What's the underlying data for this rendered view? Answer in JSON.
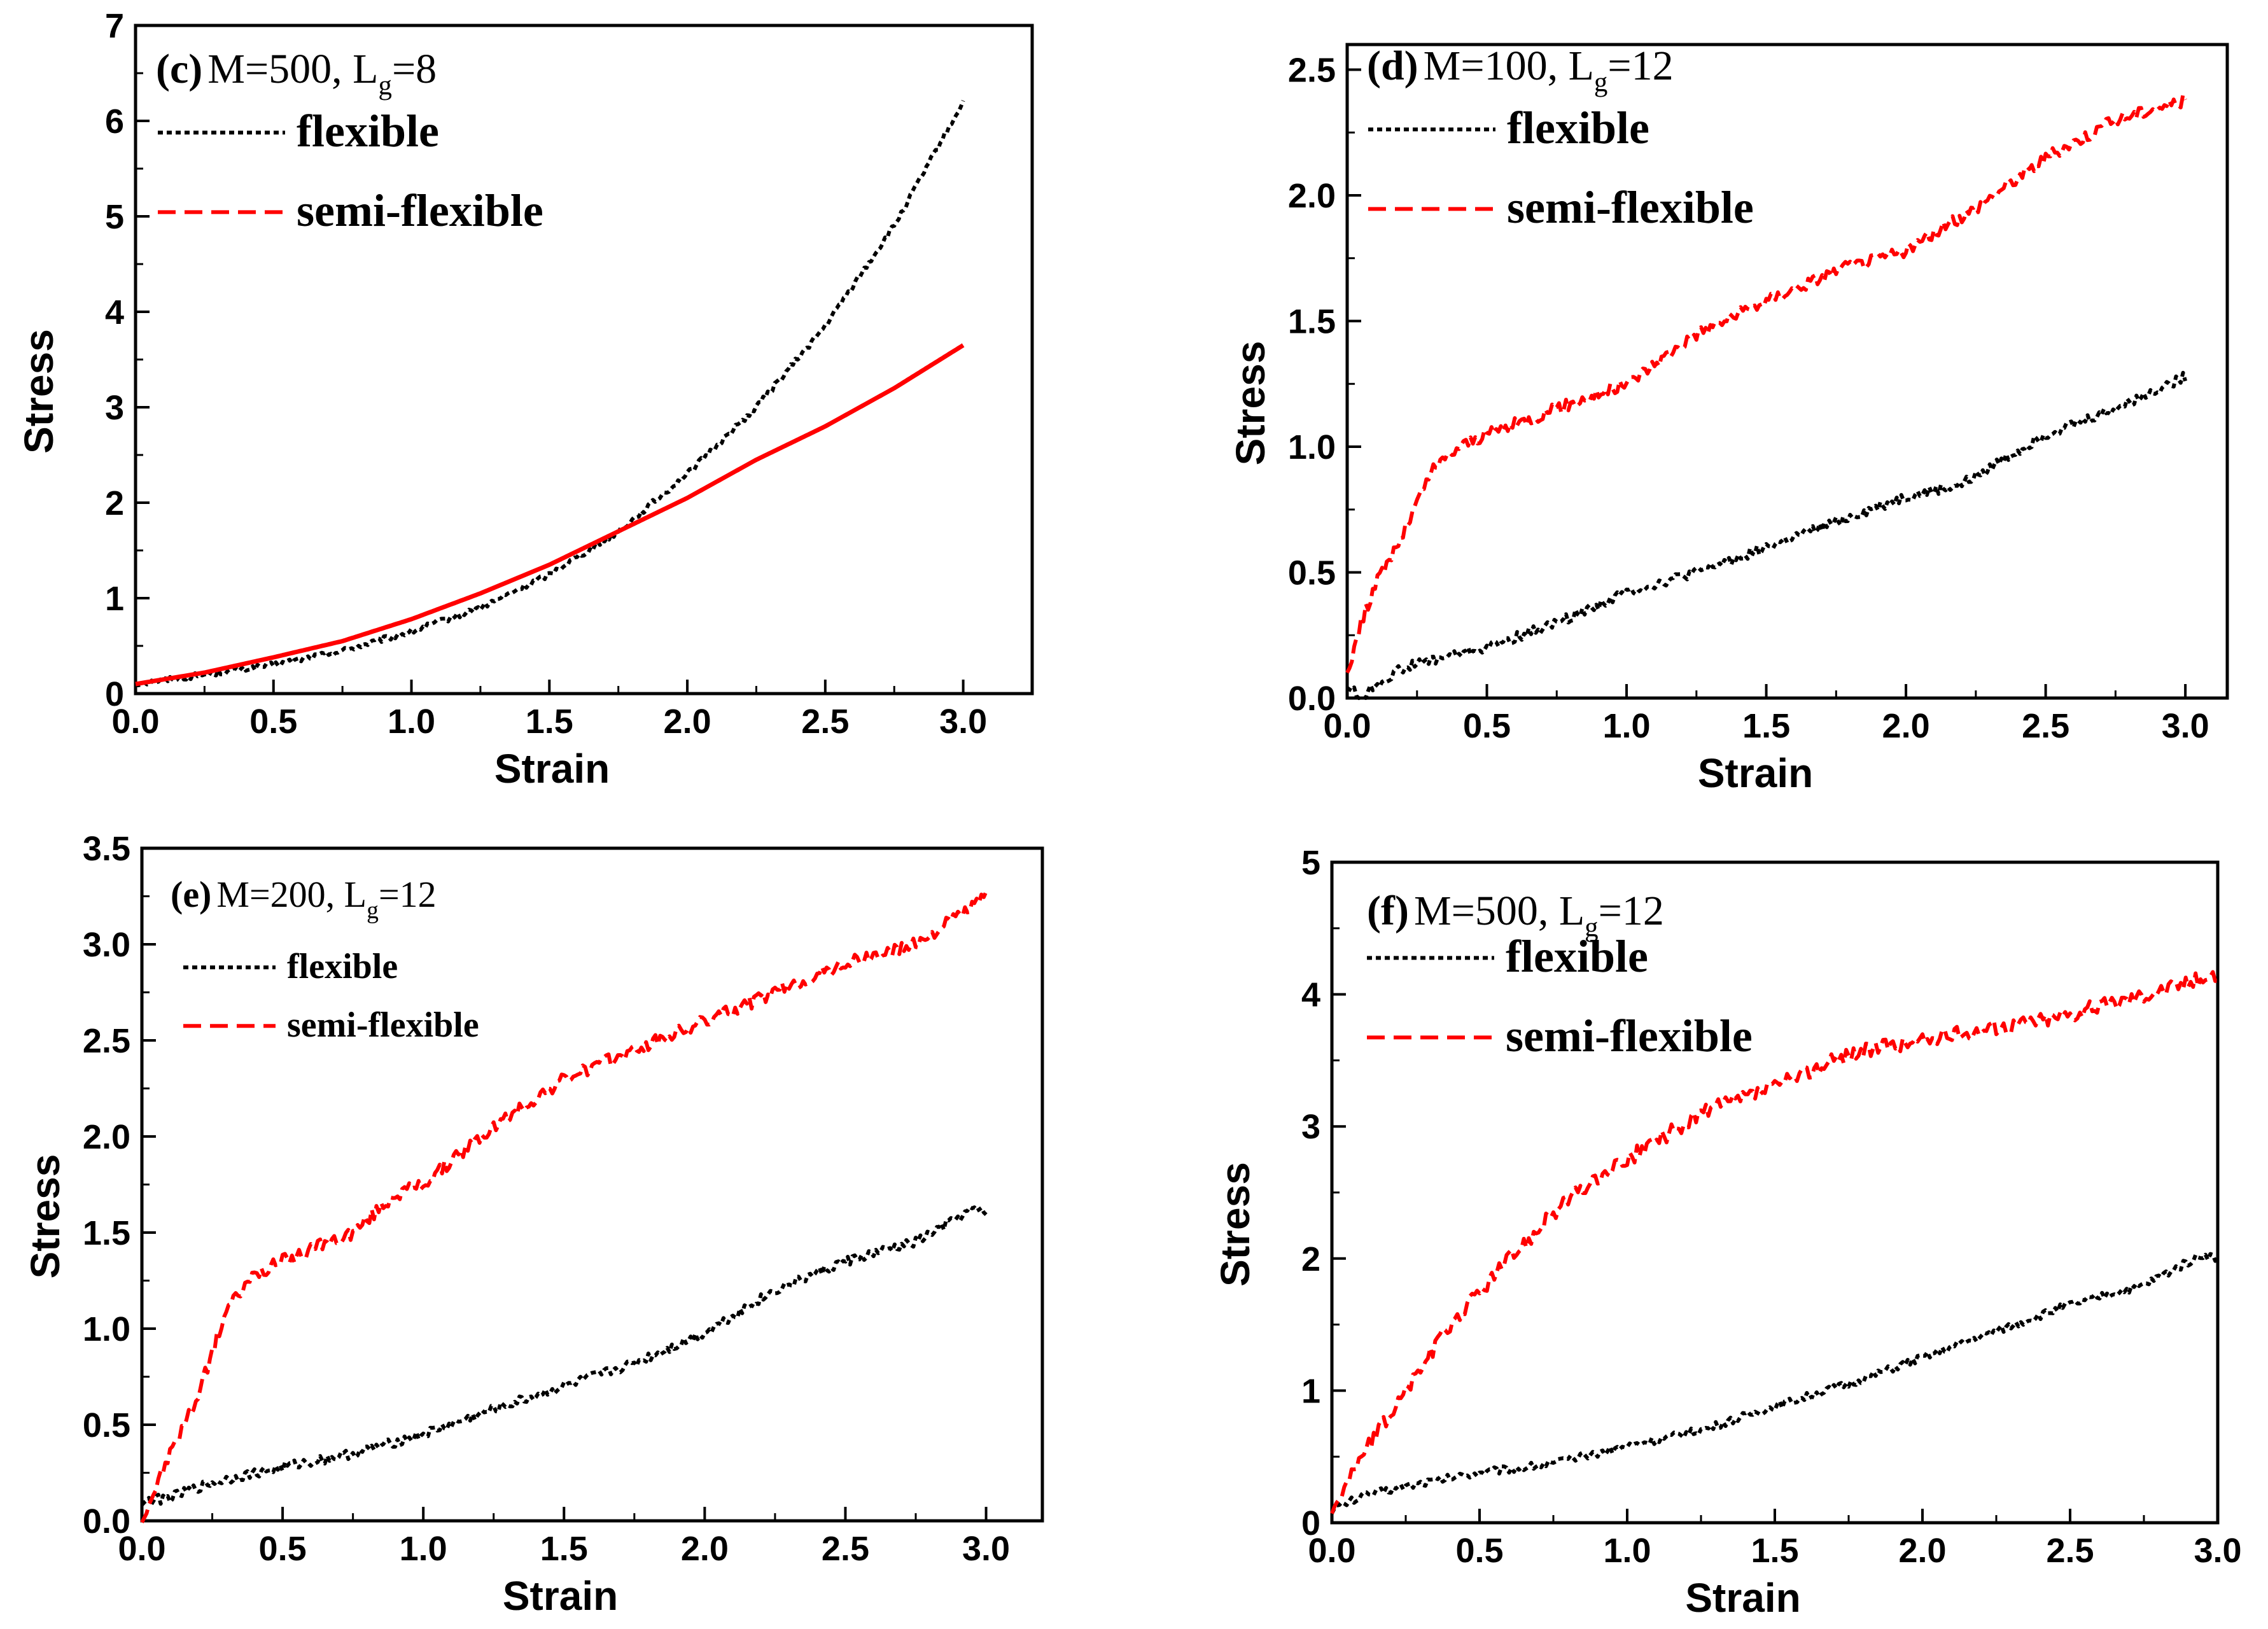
{
  "chart_data": [
    {
      "id": "c",
      "type": "line",
      "panel_label": "(c)",
      "title": "M=500, L",
      "title_sub": "g",
      "title_tail": "=8",
      "xlabel": "Strain",
      "ylabel": "Stress",
      "xlim": [
        0,
        3.25
      ],
      "ylim": [
        0,
        7
      ],
      "xticks": [
        "0.0",
        "0.5",
        "1.0",
        "1.5",
        "2.0",
        "2.5",
        "3.0"
      ],
      "xtick_values": [
        0,
        0.5,
        1,
        1.5,
        2,
        2.5,
        3
      ],
      "yticks": [
        "0",
        "1",
        "2",
        "3",
        "4",
        "5",
        "6",
        "7"
      ],
      "ytick_values": [
        0,
        1,
        2,
        3,
        4,
        5,
        6,
        7
      ],
      "legend_position": "top-left",
      "legend_size": "large",
      "series": [
        {
          "name": "flexible",
          "color": "#000000",
          "style": "dotted",
          "x": [
            0,
            0.25,
            0.5,
            0.75,
            1.0,
            1.25,
            1.5,
            1.75,
            2.0,
            2.25,
            2.5,
            2.75,
            3.0
          ],
          "y": [
            0.1,
            0.2,
            0.3,
            0.45,
            0.65,
            0.9,
            1.25,
            1.7,
            2.3,
            3.0,
            3.85,
            4.9,
            6.2
          ],
          "noise": 0.03
        },
        {
          "name": "semi-flexible",
          "color": "#ff0000",
          "style": "solid",
          "x": [
            0,
            0.25,
            0.5,
            0.75,
            1.0,
            1.25,
            1.5,
            1.75,
            2.0,
            2.25,
            2.5,
            2.75,
            3.0
          ],
          "y": [
            0.1,
            0.22,
            0.38,
            0.55,
            0.78,
            1.05,
            1.35,
            1.7,
            2.05,
            2.45,
            2.8,
            3.2,
            3.65
          ],
          "noise": 0.0
        }
      ]
    },
    {
      "id": "d",
      "type": "line",
      "panel_label": "(d)",
      "title": "M=100, L",
      "title_sub": "g",
      "title_tail": "=12",
      "xlabel": "Strain",
      "ylabel": "Stress",
      "xlim": [
        0,
        3.15
      ],
      "ylim": [
        0,
        2.6
      ],
      "xticks": [
        "0.0",
        "0.5",
        "1.0",
        "1.5",
        "2.0",
        "2.5",
        "3.0"
      ],
      "xtick_values": [
        0,
        0.5,
        1,
        1.5,
        2,
        2.5,
        3
      ],
      "yticks": [
        "0.0",
        "0.5",
        "1.0",
        "1.5",
        "2.0",
        "2.5"
      ],
      "ytick_values": [
        0,
        0.5,
        1.0,
        1.5,
        2.0,
        2.5
      ],
      "legend_position": "top-left",
      "legend_size": "large",
      "series": [
        {
          "name": "flexible",
          "color": "#000000",
          "style": "dotted",
          "x": [
            0,
            0.05,
            0.1,
            0.2,
            0.3,
            0.5,
            0.75,
            1.0,
            1.25,
            1.5,
            1.75,
            2.0,
            2.2,
            2.5,
            2.75,
            3.0
          ],
          "y": [
            0.05,
            0.0,
            0.05,
            0.12,
            0.15,
            0.2,
            0.3,
            0.42,
            0.5,
            0.6,
            0.7,
            0.8,
            0.85,
            1.05,
            1.15,
            1.28
          ],
          "noise": 0.02
        },
        {
          "name": "semi-flexible",
          "color": "#ff0000",
          "style": "dashed",
          "x": [
            0,
            0.05,
            0.1,
            0.2,
            0.3,
            0.4,
            0.5,
            0.75,
            1.0,
            1.25,
            1.5,
            1.75,
            2.0,
            2.25,
            2.5,
            2.75,
            3.0
          ],
          "y": [
            0.1,
            0.3,
            0.45,
            0.65,
            0.9,
            1.0,
            1.05,
            1.15,
            1.25,
            1.45,
            1.58,
            1.7,
            1.78,
            1.95,
            2.15,
            2.3,
            2.38
          ],
          "noise": 0.025
        }
      ]
    },
    {
      "id": "e",
      "type": "line",
      "panel_label": "(e)",
      "title": "M=200, L",
      "title_sub": "g",
      "title_tail": "=12",
      "xlabel": "Strain",
      "ylabel": "Stress",
      "xlim": [
        0,
        3.2
      ],
      "ylim": [
        0,
        3.5
      ],
      "xticks": [
        "0.0",
        "0.5",
        "1.0",
        "1.5",
        "2.0",
        "2.5",
        "3.0"
      ],
      "xtick_values": [
        0,
        0.5,
        1,
        1.5,
        2,
        2.5,
        3
      ],
      "yticks": [
        "0.0",
        "0.5",
        "1.0",
        "1.5",
        "2.0",
        "2.5",
        "3.0",
        "3.5"
      ],
      "ytick_values": [
        0,
        0.5,
        1.0,
        1.5,
        2.0,
        2.5,
        3.0,
        3.5
      ],
      "legend_position": "top-left",
      "legend_size": "small",
      "series": [
        {
          "name": "flexible",
          "color": "#000000",
          "style": "dotted",
          "x": [
            0,
            0.1,
            0.25,
            0.5,
            0.75,
            1.0,
            1.25,
            1.5,
            1.75,
            2.0,
            2.25,
            2.5,
            2.75,
            2.95,
            3.0
          ],
          "y": [
            0.1,
            0.12,
            0.2,
            0.28,
            0.35,
            0.45,
            0.58,
            0.7,
            0.82,
            0.98,
            1.2,
            1.35,
            1.45,
            1.62,
            1.6
          ],
          "noise": 0.025
        },
        {
          "name": "semi-flexible",
          "color": "#ff0000",
          "style": "dashed",
          "x": [
            0,
            0.1,
            0.2,
            0.3,
            0.4,
            0.5,
            0.75,
            0.9,
            1.0,
            1.25,
            1.5,
            1.75,
            2.0,
            2.25,
            2.5,
            2.75,
            3.0
          ],
          "y": [
            0.0,
            0.35,
            0.65,
            1.1,
            1.28,
            1.35,
            1.5,
            1.7,
            1.75,
            2.05,
            2.3,
            2.45,
            2.6,
            2.75,
            2.9,
            3.0,
            3.25
          ],
          "noise": 0.035
        }
      ]
    },
    {
      "id": "f",
      "type": "line",
      "panel_label": "(f)",
      "title": "M=500, L",
      "title_sub": "g",
      "title_tail": "=12",
      "xlabel": "Strain",
      "ylabel": "Stress",
      "xlim": [
        0,
        3.0
      ],
      "ylim": [
        0,
        5
      ],
      "xticks": [
        "0.0",
        "0.5",
        "1.0",
        "1.5",
        "2.0",
        "2.5",
        "3.0"
      ],
      "xtick_values": [
        0,
        0.5,
        1,
        1.5,
        2,
        2.5,
        3
      ],
      "yticks": [
        "0",
        "1",
        "2",
        "3",
        "4",
        "5"
      ],
      "ytick_values": [
        0,
        1,
        2,
        3,
        4,
        5
      ],
      "legend_position": "top-left",
      "legend_size": "large",
      "series": [
        {
          "name": "flexible",
          "color": "#000000",
          "style": "dotted",
          "x": [
            0,
            0.1,
            0.25,
            0.5,
            0.75,
            1.0,
            1.25,
            1.5,
            1.75,
            2.0,
            2.25,
            2.5,
            2.75,
            2.95,
            3.0
          ],
          "y": [
            0.1,
            0.2,
            0.28,
            0.38,
            0.45,
            0.58,
            0.7,
            0.88,
            1.05,
            1.25,
            1.45,
            1.65,
            1.8,
            2.03,
            2.0
          ],
          "noise": 0.03
        },
        {
          "name": "semi-flexible",
          "color": "#ff0000",
          "style": "dashed",
          "x": [
            0,
            0.1,
            0.25,
            0.4,
            0.6,
            0.8,
            1.0,
            1.25,
            1.5,
            1.75,
            2.0,
            2.25,
            2.5,
            2.75,
            3.0
          ],
          "y": [
            0.1,
            0.5,
            1.0,
            1.5,
            2.0,
            2.45,
            2.75,
            3.1,
            3.3,
            3.55,
            3.65,
            3.75,
            3.85,
            4.0,
            4.15
          ],
          "noise": 0.06
        }
      ]
    }
  ]
}
